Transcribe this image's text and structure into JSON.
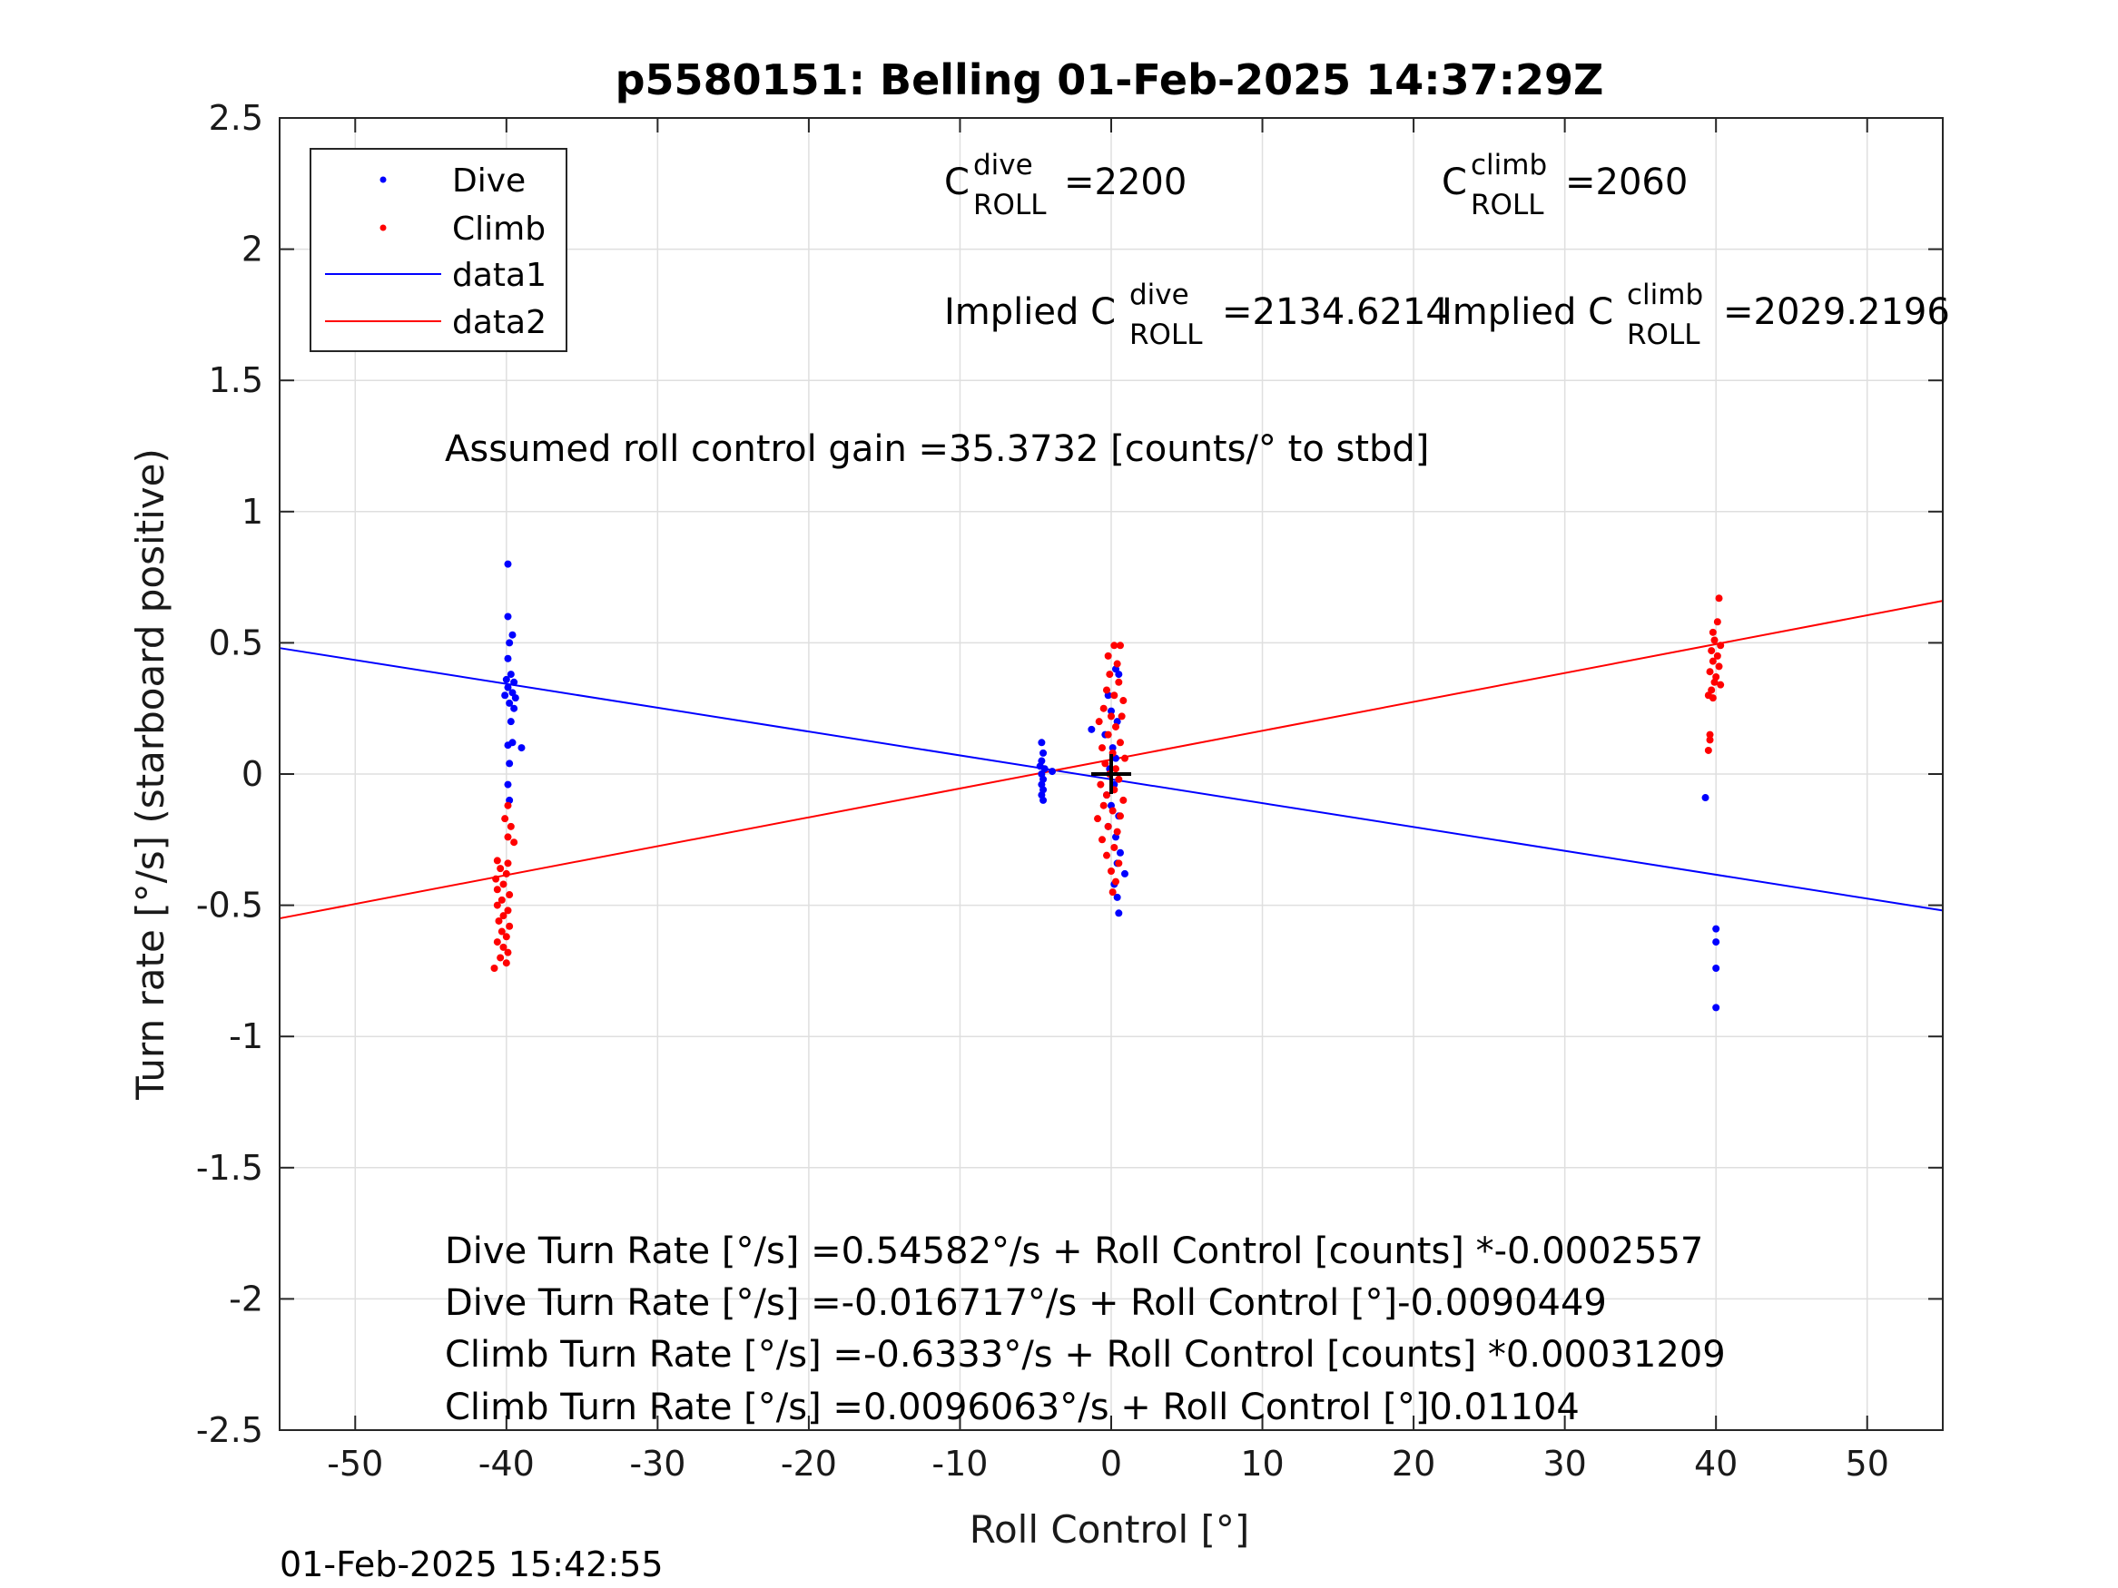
{
  "chart_data": {
    "type": "scatter",
    "title": "p5580151: Belling 01-Feb-2025 14:37:29Z",
    "xlabel": "Roll Control [°]",
    "ylabel": "Turn rate [°/s] (starboard positive)",
    "xlim": [
      -55,
      55
    ],
    "ylim": [
      -2.5,
      2.5
    ],
    "x_ticks": [
      -50,
      -40,
      -30,
      -20,
      -10,
      0,
      10,
      20,
      30,
      40,
      50
    ],
    "x_tick_labels": [
      "-50",
      "-40",
      "-30",
      "-20",
      "-10",
      "0",
      "10",
      "20",
      "30",
      "40",
      "50"
    ],
    "y_ticks": [
      2.5,
      2,
      1.5,
      1,
      0.5,
      0,
      -0.5,
      -1,
      -1.5,
      -2,
      -2.5
    ],
    "y_tick_labels": [
      "2.5",
      "2",
      "1.5",
      "1",
      "0.5",
      "0",
      "-0.5",
      "-1",
      "-1.5",
      "-2",
      "-2.5"
    ],
    "grid": true,
    "legend_position": "top-left",
    "legend": [
      "Dive",
      "Climb",
      "data1",
      "data2"
    ],
    "colors": {
      "dive": "#0000ff",
      "climb": "#ff0000",
      "center_marker": "#000000"
    },
    "series": [
      {
        "name": "Dive",
        "kind": "points",
        "points": [
          [
            -39.9,
            0.8
          ],
          [
            -39.9,
            0.6
          ],
          [
            -39.6,
            0.53
          ],
          [
            -39.8,
            0.5
          ],
          [
            -39.9,
            0.44
          ],
          [
            -39.7,
            0.38
          ],
          [
            -40.0,
            0.36
          ],
          [
            -39.5,
            0.35
          ],
          [
            -39.9,
            0.33
          ],
          [
            -39.6,
            0.31
          ],
          [
            -40.1,
            0.3
          ],
          [
            -39.4,
            0.29
          ],
          [
            -39.8,
            0.27
          ],
          [
            -39.5,
            0.25
          ],
          [
            -39.7,
            0.2
          ],
          [
            -39.6,
            0.12
          ],
          [
            -39.9,
            0.11
          ],
          [
            -39.0,
            0.1
          ],
          [
            -39.8,
            0.04
          ],
          [
            -39.9,
            -0.04
          ],
          [
            -39.8,
            -0.1
          ],
          [
            -4.6,
            0.12
          ],
          [
            -4.5,
            0.08
          ],
          [
            -4.6,
            0.05
          ],
          [
            -4.7,
            0.03
          ],
          [
            -4.4,
            0.02
          ],
          [
            -4.6,
            0.0
          ],
          [
            -4.5,
            -0.02
          ],
          [
            -4.6,
            -0.04
          ],
          [
            -4.5,
            -0.06
          ],
          [
            -4.6,
            -0.08
          ],
          [
            -4.5,
            -0.1
          ],
          [
            -3.9,
            0.01
          ],
          [
            -1.3,
            0.17
          ],
          [
            0.3,
            0.4
          ],
          [
            0.5,
            0.38
          ],
          [
            -0.2,
            0.3
          ],
          [
            0.0,
            0.24
          ],
          [
            0.4,
            0.2
          ],
          [
            -0.4,
            0.15
          ],
          [
            0.1,
            0.1
          ],
          [
            0.3,
            0.06
          ],
          [
            -0.1,
            0.02
          ],
          [
            0.2,
            -0.04
          ],
          [
            -0.3,
            -0.08
          ],
          [
            0.0,
            -0.12
          ],
          [
            0.5,
            -0.16
          ],
          [
            -0.2,
            -0.2
          ],
          [
            0.3,
            -0.24
          ],
          [
            0.6,
            -0.3
          ],
          [
            0.4,
            -0.34
          ],
          [
            0.9,
            -0.38
          ],
          [
            0.2,
            -0.42
          ],
          [
            0.4,
            -0.47
          ],
          [
            0.5,
            -0.53
          ],
          [
            39.3,
            -0.09
          ],
          [
            40.0,
            -0.59
          ],
          [
            40.0,
            -0.64
          ],
          [
            40.0,
            -0.74
          ],
          [
            40.0,
            -0.89
          ]
        ]
      },
      {
        "name": "Climb",
        "kind": "points",
        "points": [
          [
            -39.9,
            -0.12
          ],
          [
            -40.1,
            -0.17
          ],
          [
            -39.7,
            -0.2
          ],
          [
            -39.9,
            -0.24
          ],
          [
            -39.5,
            -0.26
          ],
          [
            -40.6,
            -0.33
          ],
          [
            -39.9,
            -0.34
          ],
          [
            -40.4,
            -0.36
          ],
          [
            -40.0,
            -0.38
          ],
          [
            -40.7,
            -0.4
          ],
          [
            -40.2,
            -0.42
          ],
          [
            -40.6,
            -0.44
          ],
          [
            -39.8,
            -0.46
          ],
          [
            -40.3,
            -0.48
          ],
          [
            -40.6,
            -0.5
          ],
          [
            -39.9,
            -0.52
          ],
          [
            -40.2,
            -0.54
          ],
          [
            -40.5,
            -0.56
          ],
          [
            -39.8,
            -0.58
          ],
          [
            -40.3,
            -0.6
          ],
          [
            -40.0,
            -0.62
          ],
          [
            -40.6,
            -0.64
          ],
          [
            -40.2,
            -0.66
          ],
          [
            -39.9,
            -0.68
          ],
          [
            -40.4,
            -0.7
          ],
          [
            -40.0,
            -0.72
          ],
          [
            -40.8,
            -0.74
          ],
          [
            0.2,
            0.49
          ],
          [
            0.6,
            0.49
          ],
          [
            -0.2,
            0.45
          ],
          [
            0.4,
            0.42
          ],
          [
            -0.1,
            0.38
          ],
          [
            0.5,
            0.35
          ],
          [
            -0.3,
            0.32
          ],
          [
            0.2,
            0.3
          ],
          [
            0.8,
            0.28
          ],
          [
            -0.5,
            0.25
          ],
          [
            0.0,
            0.22
          ],
          [
            0.7,
            0.22
          ],
          [
            -0.8,
            0.2
          ],
          [
            0.3,
            0.18
          ],
          [
            -0.2,
            0.15
          ],
          [
            0.6,
            0.12
          ],
          [
            -0.6,
            0.1
          ],
          [
            0.1,
            0.08
          ],
          [
            0.9,
            0.06
          ],
          [
            -0.4,
            0.04
          ],
          [
            0.3,
            0.02
          ],
          [
            -0.1,
            0.0
          ],
          [
            0.5,
            -0.02
          ],
          [
            -0.7,
            -0.04
          ],
          [
            0.2,
            -0.06
          ],
          [
            -0.3,
            -0.08
          ],
          [
            0.8,
            -0.1
          ],
          [
            -0.5,
            -0.12
          ],
          [
            0.1,
            -0.14
          ],
          [
            0.6,
            -0.16
          ],
          [
            -0.9,
            -0.17
          ],
          [
            -0.2,
            -0.2
          ],
          [
            0.4,
            -0.22
          ],
          [
            -0.6,
            -0.25
          ],
          [
            0.2,
            -0.28
          ],
          [
            -0.3,
            -0.31
          ],
          [
            0.5,
            -0.34
          ],
          [
            0.0,
            -0.37
          ],
          [
            0.3,
            -0.41
          ],
          [
            0.1,
            -0.45
          ],
          [
            40.2,
            0.67
          ],
          [
            40.1,
            0.58
          ],
          [
            39.8,
            0.54
          ],
          [
            39.9,
            0.51
          ],
          [
            40.3,
            0.49
          ],
          [
            39.7,
            0.47
          ],
          [
            40.1,
            0.45
          ],
          [
            39.8,
            0.43
          ],
          [
            40.2,
            0.41
          ],
          [
            39.6,
            0.39
          ],
          [
            40.0,
            0.37
          ],
          [
            39.9,
            0.35
          ],
          [
            40.3,
            0.34
          ],
          [
            39.7,
            0.32
          ],
          [
            39.5,
            0.3
          ],
          [
            39.8,
            0.29
          ],
          [
            39.6,
            0.15
          ],
          [
            39.6,
            0.13
          ],
          [
            39.5,
            0.09
          ]
        ]
      },
      {
        "name": "data1",
        "kind": "line",
        "points": [
          [
            -55,
            0.48
          ],
          [
            55,
            -0.52
          ]
        ]
      },
      {
        "name": "data2",
        "kind": "line",
        "points": [
          [
            -55,
            -0.55
          ],
          [
            55,
            0.66
          ]
        ]
      }
    ],
    "center_marker": {
      "shape": "plus",
      "x": 0,
      "y": 0
    },
    "annotations": {
      "c_roll_dive": {
        "base": "C",
        "sup": "dive",
        "sub": "ROLL",
        "value": "=2200"
      },
      "c_roll_climb": {
        "base": "C",
        "sup": "climb",
        "sub": "ROLL",
        "value": "=2060"
      },
      "implied_dive": {
        "prefix": "Implied C",
        "sup": "dive",
        "sub": "ROLL",
        "value": "=2134.6214"
      },
      "implied_climb": {
        "prefix": "Implied C",
        "sup": "climb",
        "sub": "ROLL",
        "value": "=2029.2196"
      },
      "gain": "Assumed roll control gain =35.3732 [counts/° to stbd]",
      "fits": [
        "Dive Turn Rate [°/s] =0.54582°/s + Roll Control [counts] *-0.0002557",
        "Dive Turn Rate [°/s] =-0.016717°/s + Roll Control [°]-0.0090449",
        "Climb Turn Rate [°/s] =-0.6333°/s + Roll Control [counts] *0.00031209",
        "Climb Turn Rate [°/s] =0.0096063°/s + Roll Control [°]0.01104"
      ]
    }
  },
  "footer_timestamp": "01-Feb-2025 15:42:55"
}
